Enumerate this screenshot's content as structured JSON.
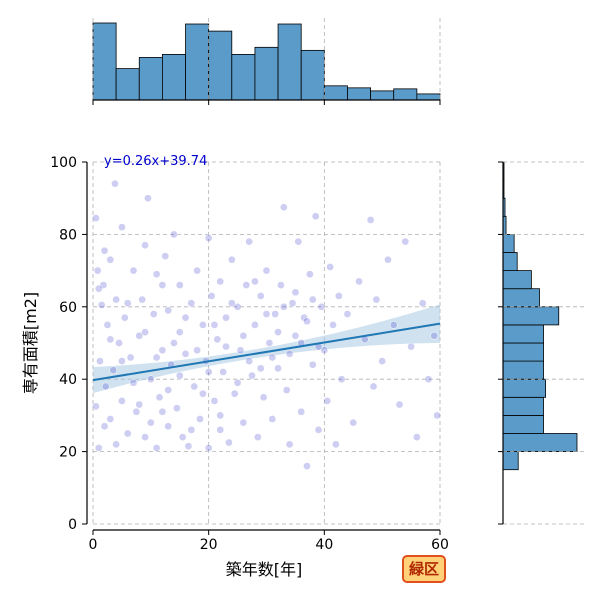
{
  "chart_data": {
    "type": "scatter",
    "xlabel": "築年数[年]",
    "ylabel": "専有面積[m2]",
    "xlim": [
      0,
      60
    ],
    "ylim": [
      0,
      100
    ],
    "xticks": [
      "0",
      "20",
      "40",
      "60"
    ],
    "yticks": [
      "0",
      "20",
      "40",
      "60",
      "80",
      "100"
    ],
    "grid": true,
    "regression": {
      "equation_label": "y=0.26x+39.74",
      "slope": 0.26,
      "intercept": 39.74,
      "color": "#1f77b4",
      "band_color": "#a9c8e2"
    },
    "point_color": "#3b3bd1",
    "hist_color": "#5b9bc9",
    "x_histogram": {
      "bin_edges": [
        0,
        4,
        8,
        12,
        16,
        20,
        24,
        28,
        32,
        36,
        40,
        44,
        48,
        52,
        56,
        60
      ],
      "heights": [
        76,
        31,
        42,
        45,
        75,
        68,
        45,
        52,
        75,
        49,
        14,
        12,
        9,
        11,
        6
      ]
    },
    "y_histogram": {
      "bin_edges": [
        15,
        20,
        25,
        30,
        35,
        40,
        45,
        50,
        55,
        60,
        65,
        70,
        75,
        80,
        85,
        90,
        95,
        100
      ],
      "widths": [
        15,
        73,
        40,
        40,
        42,
        40,
        40,
        40,
        55,
        36,
        28,
        14,
        11,
        3,
        2,
        1,
        1
      ]
    },
    "points": [
      [
        0.5,
        32.5
      ],
      [
        0.5,
        84.5
      ],
      [
        0.8,
        70.0
      ],
      [
        1.0,
        21.0
      ],
      [
        1.2,
        45.0
      ],
      [
        1.5,
        60.5
      ],
      [
        1.8,
        66.0
      ],
      [
        2.0,
        75.5
      ],
      [
        2.2,
        38.0
      ],
      [
        2.5,
        55.0
      ],
      [
        3.0,
        29.0
      ],
      [
        3.0,
        73.0
      ],
      [
        3.5,
        42.5
      ],
      [
        3.8,
        94.0
      ],
      [
        4.0,
        62.0
      ],
      [
        4.5,
        50.0
      ],
      [
        5.0,
        34.0
      ],
      [
        5.0,
        82.0
      ],
      [
        5.5,
        57.0
      ],
      [
        6.0,
        25.0
      ],
      [
        6.5,
        46.0
      ],
      [
        7.0,
        70.0
      ],
      [
        7.5,
        31.0
      ],
      [
        8.0,
        52.0
      ],
      [
        8.5,
        62.0
      ],
      [
        9.0,
        24.0
      ],
      [
        9.0,
        77.0
      ],
      [
        9.5,
        90.0
      ],
      [
        10.0,
        40.0
      ],
      [
        10.5,
        58.0
      ],
      [
        11.0,
        21.0
      ],
      [
        11.0,
        69.0
      ],
      [
        11.5,
        35.0
      ],
      [
        12.0,
        48.0
      ],
      [
        12.5,
        74.0
      ],
      [
        13.0,
        27.0
      ],
      [
        13.0,
        59.0
      ],
      [
        13.5,
        44.0
      ],
      [
        14.0,
        80.0
      ],
      [
        14.5,
        32.0
      ],
      [
        15.0,
        53.0
      ],
      [
        15.0,
        66.0
      ],
      [
        15.5,
        24.0
      ],
      [
        16.0,
        47.0
      ],
      [
        16.5,
        21.5
      ],
      [
        17.0,
        61.0
      ],
      [
        17.5,
        38.0
      ],
      [
        18.0,
        70.0
      ],
      [
        18.5,
        29.0
      ],
      [
        19.0,
        55.0
      ],
      [
        19.5,
        45.0
      ],
      [
        20.0,
        21.0
      ],
      [
        20.0,
        79.0
      ],
      [
        20.5,
        63.0
      ],
      [
        21.0,
        34.0
      ],
      [
        21.5,
        51.0
      ],
      [
        22.0,
        26.0
      ],
      [
        22.0,
        67.0
      ],
      [
        22.5,
        42.0
      ],
      [
        23.0,
        57.0
      ],
      [
        23.5,
        22.5
      ],
      [
        24.0,
        73.0
      ],
      [
        24.5,
        36.0
      ],
      [
        25.0,
        60.0
      ],
      [
        25.5,
        48.0
      ],
      [
        26.0,
        28.0
      ],
      [
        26.5,
        66.0
      ],
      [
        27.0,
        78.0
      ],
      [
        27.5,
        41.0
      ],
      [
        28.0,
        55.0
      ],
      [
        28.5,
        24.0
      ],
      [
        29.0,
        63.0
      ],
      [
        29.5,
        35.0
      ],
      [
        30.0,
        70.0
      ],
      [
        30.5,
        50.0
      ],
      [
        31.0,
        29.0
      ],
      [
        31.5,
        58.0
      ],
      [
        32.0,
        43.0
      ],
      [
        32.5,
        66.0
      ],
      [
        33.0,
        87.5
      ],
      [
        33.5,
        37.0
      ],
      [
        34.0,
        22.0
      ],
      [
        34.5,
        61.0
      ],
      [
        35.0,
        52.0
      ],
      [
        35.5,
        78.0
      ],
      [
        36.0,
        31.0
      ],
      [
        36.5,
        57.0
      ],
      [
        37.0,
        16.0
      ],
      [
        37.5,
        69.0
      ],
      [
        38.0,
        44.0
      ],
      [
        38.5,
        85.0
      ],
      [
        39.0,
        26.0
      ],
      [
        39.5,
        60.0
      ],
      [
        40.0,
        48.0
      ],
      [
        40.5,
        34.0
      ],
      [
        41.0,
        71.0
      ],
      [
        41.5,
        55.0
      ],
      [
        42.0,
        22.0
      ],
      [
        42.5,
        63.0
      ],
      [
        43.0,
        40.0
      ],
      [
        44.0,
        58.0
      ],
      [
        45.0,
        28.0
      ],
      [
        46.0,
        67.0
      ],
      [
        47.0,
        51.0
      ],
      [
        48.0,
        84.0
      ],
      [
        48.5,
        38.0
      ],
      [
        49.0,
        62.0
      ],
      [
        50.0,
        45.0
      ],
      [
        51.0,
        73.0
      ],
      [
        52.0,
        55.0
      ],
      [
        53.0,
        33.0
      ],
      [
        54.0,
        78.0
      ],
      [
        55.0,
        49.0
      ],
      [
        56.0,
        24.0
      ],
      [
        57.0,
        61.0
      ],
      [
        58.0,
        40.0
      ],
      [
        59.0,
        52.0
      ],
      [
        59.5,
        30.0
      ],
      [
        5.0,
        45.0
      ],
      [
        7.0,
        39.0
      ],
      [
        10.0,
        28.0
      ],
      [
        12.0,
        66.0
      ],
      [
        14.0,
        50.0
      ],
      [
        16.0,
        57.0
      ],
      [
        18.0,
        48.0
      ],
      [
        20.0,
        42.0
      ],
      [
        21.0,
        55.0
      ],
      [
        23.0,
        49.0
      ],
      [
        24.0,
        61.0
      ],
      [
        26.0,
        52.0
      ],
      [
        27.0,
        45.0
      ],
      [
        28.0,
        67.0
      ],
      [
        30.0,
        58.0
      ],
      [
        31.0,
        46.0
      ],
      [
        32.0,
        53.0
      ],
      [
        33.0,
        60.0
      ],
      [
        34.0,
        47.0
      ],
      [
        35.0,
        64.0
      ],
      [
        36.0,
        50.0
      ],
      [
        37.0,
        56.0
      ],
      [
        38.0,
        62.0
      ],
      [
        39.0,
        49.0
      ],
      [
        19.0,
        36.0
      ],
      [
        22.0,
        30.0
      ],
      [
        25.0,
        39.0
      ],
      [
        29.0,
        43.0
      ],
      [
        17.0,
        26.0
      ],
      [
        15.0,
        41.0
      ],
      [
        13.0,
        37.0
      ],
      [
        11.0,
        46.0
      ],
      [
        9.0,
        53.0
      ],
      [
        6.0,
        61.0
      ],
      [
        3.0,
        51.0
      ],
      [
        2.0,
        27.0
      ],
      [
        1.0,
        65.0
      ],
      [
        4.0,
        22.0
      ],
      [
        8.0,
        33.0
      ],
      [
        12.0,
        31.0
      ]
    ]
  },
  "badge": {
    "label": "緑区"
  }
}
